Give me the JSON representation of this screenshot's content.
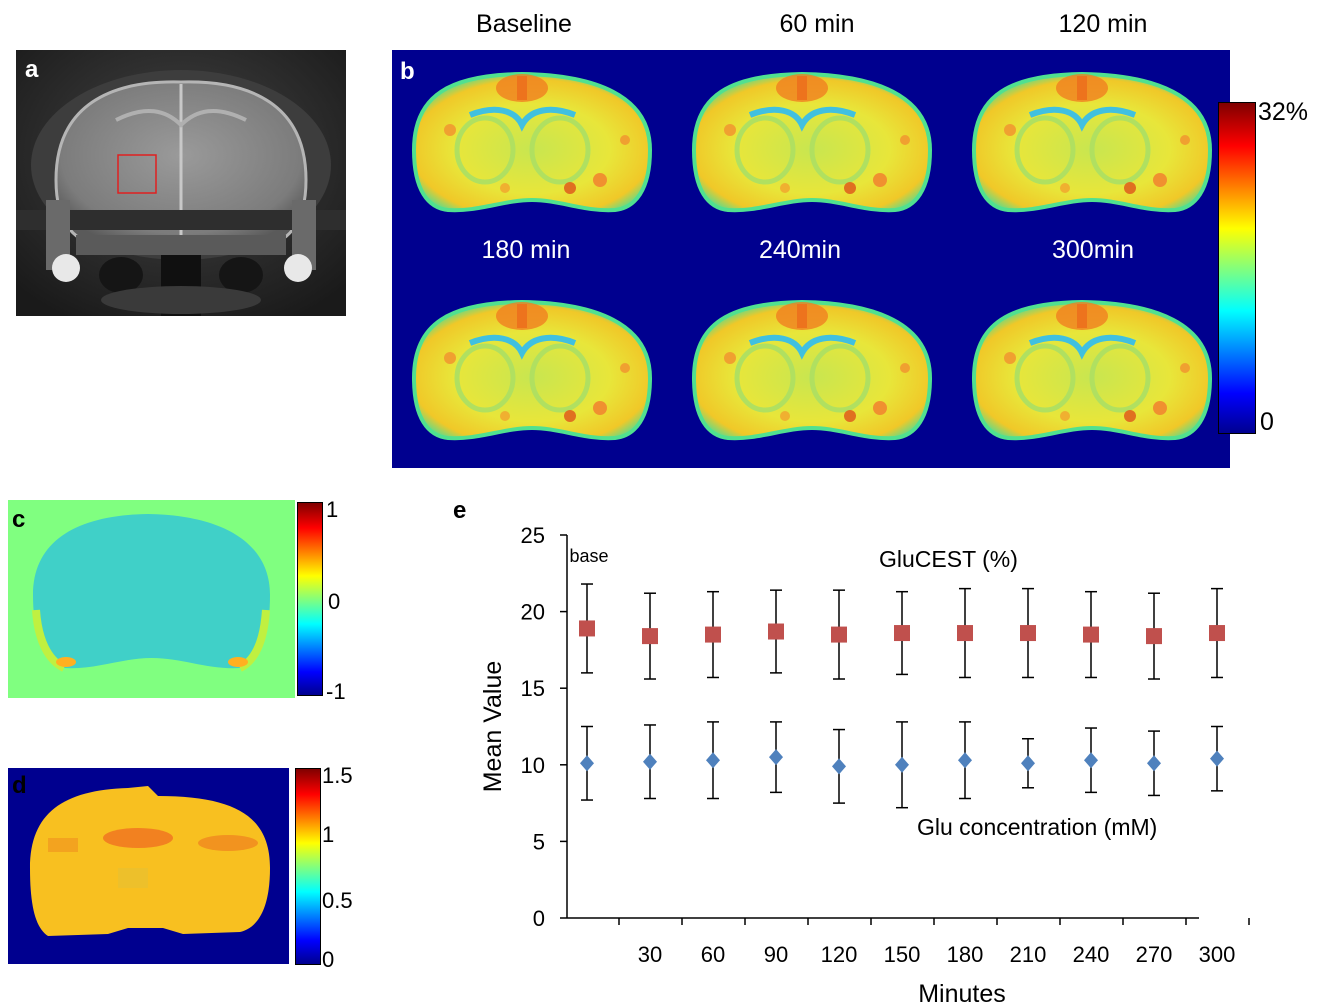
{
  "panels": {
    "a": {
      "letter": "a"
    },
    "b": {
      "letter": "b",
      "time_labels": [
        "Baseline",
        "60 min",
        "120 min",
        "180 min",
        "240min",
        "300min"
      ],
      "colorbar": {
        "max_label": "32%",
        "min_label": "0"
      }
    },
    "c": {
      "letter": "c",
      "colorbar": {
        "labels": [
          "1",
          "0",
          "-1"
        ]
      }
    },
    "d": {
      "letter": "d",
      "colorbar": {
        "labels": [
          "1.5",
          "1",
          "0.5",
          "0"
        ]
      }
    },
    "e": {
      "letter": "e"
    }
  },
  "colors": {
    "map_background": "#00008f",
    "glucest_series": "#c0504d",
    "glu_series": "#4f81bd",
    "roi_box": "#e02020",
    "c_map_background": "#80ff80"
  },
  "chart_data": {
    "type": "scatter",
    "xlabel": "Minutes",
    "ylabel": "Mean Value",
    "ylim": [
      0,
      25
    ],
    "yticks": [
      "0",
      "5",
      "10",
      "15",
      "20",
      "25"
    ],
    "categories": [
      "base",
      "30",
      "60",
      "90",
      "120",
      "150",
      "180",
      "210",
      "240",
      "270",
      "300"
    ],
    "series": [
      {
        "name": "GluCEST (%)",
        "marker": "square",
        "values": [
          18.9,
          18.4,
          18.5,
          18.7,
          18.5,
          18.6,
          18.6,
          18.6,
          18.5,
          18.4,
          18.6
        ],
        "errors": [
          2.9,
          2.8,
          2.8,
          2.7,
          2.9,
          2.7,
          2.9,
          2.9,
          2.8,
          2.8,
          2.9
        ]
      },
      {
        "name": "Glu concentration (mM)",
        "marker": "diamond",
        "values": [
          10.1,
          10.2,
          10.3,
          10.5,
          9.9,
          10.0,
          10.3,
          10.1,
          10.3,
          10.1,
          10.4
        ],
        "errors": [
          2.4,
          2.4,
          2.5,
          2.3,
          2.4,
          2.8,
          2.5,
          1.6,
          2.1,
          2.1,
          2.1
        ]
      }
    ]
  }
}
